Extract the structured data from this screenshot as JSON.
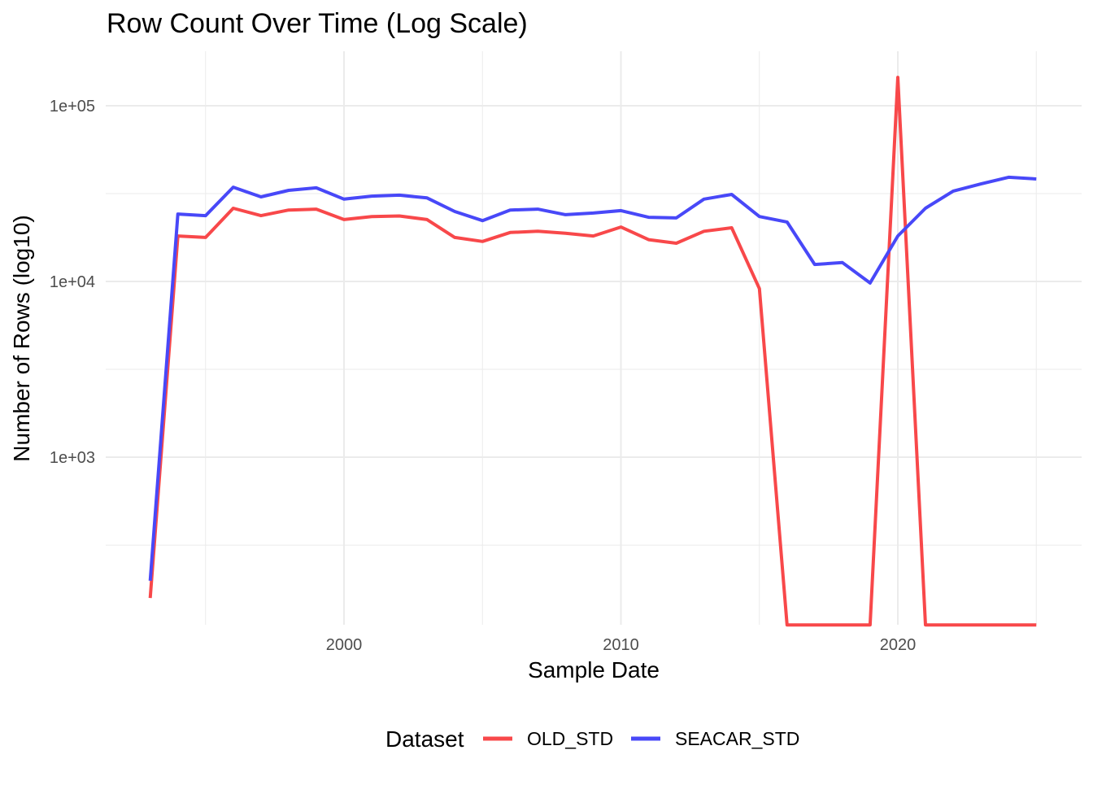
{
  "chart_data": {
    "type": "line",
    "title": "Row Count Over Time (Log Scale)",
    "xlabel": "Sample Date",
    "ylabel": "Number of Rows (log10)",
    "y_scale": "log10",
    "xlim": [
      1989.2,
      2026.6
    ],
    "ylim": [
      111,
      205000
    ],
    "x_ticks": [
      2000,
      2010,
      2020
    ],
    "x_tick_labels": [
      "2000",
      "2010",
      "2020"
    ],
    "x_minor_ticks": [
      1995,
      2005,
      2015,
      2025
    ],
    "y_ticks": [
      1000,
      10000,
      100000
    ],
    "y_tick_labels": [
      "1e+03",
      "1e+04",
      "1e+05"
    ],
    "y_minor_ticks": [
      316,
      3162,
      31623
    ],
    "grid": true,
    "legend": {
      "title": "Dataset",
      "position": "bottom"
    },
    "x": [
      1993,
      1994,
      1995,
      1996,
      1997,
      1998,
      1999,
      2000,
      2001,
      2002,
      2003,
      2004,
      2005,
      2006,
      2007,
      2008,
      2009,
      2010,
      2011,
      2012,
      2013,
      2014,
      2015,
      2016,
      2017,
      2018,
      2019,
      2020,
      2021,
      2022,
      2023,
      2024,
      2025
    ],
    "series": [
      {
        "name": "OLD_STD",
        "color": "#F8484A",
        "values": [
          158,
          18150,
          17800,
          26100,
          23700,
          25500,
          25800,
          22500,
          23400,
          23600,
          22500,
          17800,
          16900,
          19000,
          19300,
          18800,
          18150,
          20400,
          17300,
          16500,
          19300,
          20200,
          9100,
          111,
          111,
          111,
          111,
          145000,
          111,
          111,
          111,
          111,
          111
        ]
      },
      {
        "name": "SEACAR_STD",
        "color": "#4848F8",
        "values": [
          198,
          24200,
          23700,
          34400,
          30300,
          33000,
          34100,
          29400,
          30600,
          31000,
          29900,
          25000,
          22200,
          25500,
          25800,
          24000,
          24500,
          25300,
          23200,
          23000,
          29400,
          31300,
          23400,
          21800,
          12500,
          12800,
          9800,
          18150,
          26100,
          32700,
          35900,
          39200,
          38300
        ]
      }
    ]
  }
}
